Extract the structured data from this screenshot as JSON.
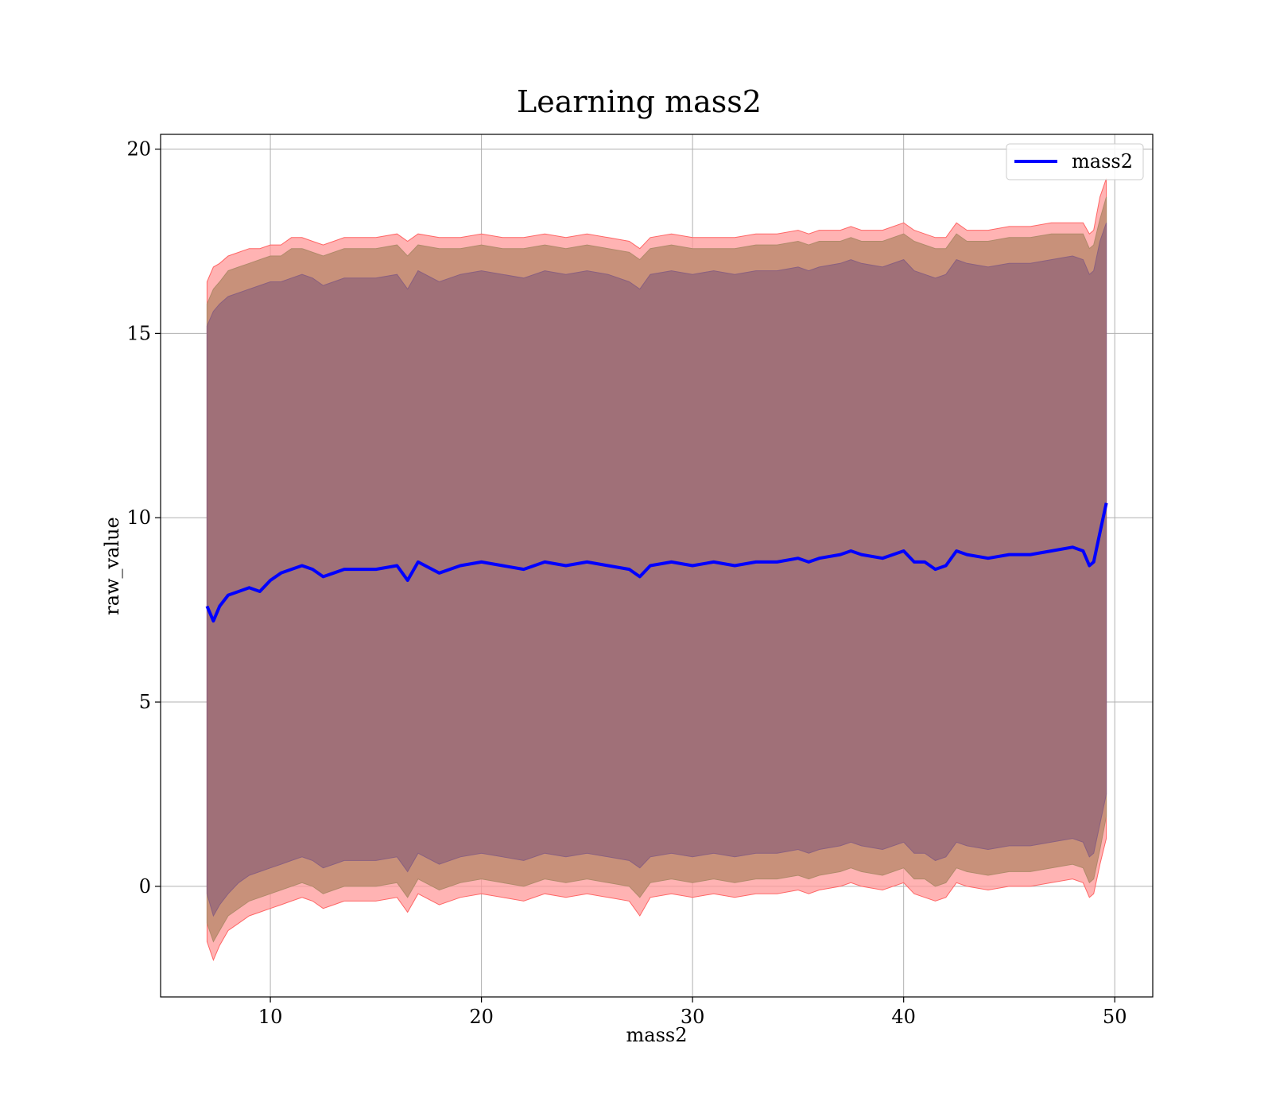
{
  "chart_data": {
    "type": "line",
    "title": "Learning mass2",
    "xlabel": "mass2",
    "ylabel": "raw_value",
    "xlim": [
      4.8,
      51.8
    ],
    "ylim": [
      -3.0,
      20.4
    ],
    "xticks": [
      10,
      20,
      30,
      40,
      50
    ],
    "yticks": [
      0,
      5,
      10,
      15,
      20
    ],
    "grid": true,
    "legend": {
      "position": "top-right",
      "entries": [
        "mass2"
      ]
    },
    "colors": {
      "line": "#0000ff",
      "outer_band": "#ff9999",
      "mid_band": "#c8917a",
      "inner_band": "#a07078"
    },
    "series": [
      {
        "name": "mass2",
        "x": [
          7.0,
          7.3,
          7.6,
          8.0,
          8.5,
          9.0,
          9.5,
          10.0,
          10.5,
          11.0,
          11.5,
          12.0,
          12.5,
          13.0,
          13.5,
          14.0,
          15.0,
          16.0,
          16.5,
          17.0,
          18.0,
          19.0,
          20.0,
          21.0,
          22.0,
          23.0,
          24.0,
          25.0,
          26.0,
          27.0,
          27.5,
          28.0,
          29.0,
          30.0,
          31.0,
          32.0,
          33.0,
          34.0,
          35.0,
          35.5,
          36.0,
          37.0,
          37.5,
          38.0,
          39.0,
          40.0,
          40.5,
          41.0,
          41.5,
          42.0,
          42.5,
          43.0,
          44.0,
          45.0,
          46.0,
          47.0,
          48.0,
          48.5,
          48.8,
          49.0,
          49.3,
          49.6
        ],
        "values": [
          7.6,
          7.2,
          7.6,
          7.9,
          8.0,
          8.1,
          8.0,
          8.3,
          8.5,
          8.6,
          8.7,
          8.6,
          8.4,
          8.5,
          8.6,
          8.6,
          8.6,
          8.7,
          8.3,
          8.8,
          8.5,
          8.7,
          8.8,
          8.7,
          8.6,
          8.8,
          8.7,
          8.8,
          8.7,
          8.6,
          8.4,
          8.7,
          8.8,
          8.7,
          8.8,
          8.7,
          8.8,
          8.8,
          8.9,
          8.8,
          8.9,
          9.0,
          9.1,
          9.0,
          8.9,
          9.1,
          8.8,
          8.8,
          8.6,
          8.7,
          9.1,
          9.0,
          8.9,
          9.0,
          9.0,
          9.1,
          9.2,
          9.1,
          8.7,
          8.8,
          9.6,
          10.4
        ],
        "bands": {
          "outer_upper": [
            16.4,
            16.8,
            16.9,
            17.1,
            17.2,
            17.3,
            17.3,
            17.4,
            17.4,
            17.6,
            17.6,
            17.5,
            17.4,
            17.5,
            17.6,
            17.6,
            17.6,
            17.7,
            17.5,
            17.7,
            17.6,
            17.6,
            17.7,
            17.6,
            17.6,
            17.7,
            17.6,
            17.7,
            17.6,
            17.5,
            17.3,
            17.6,
            17.7,
            17.6,
            17.6,
            17.6,
            17.7,
            17.7,
            17.8,
            17.7,
            17.8,
            17.8,
            17.9,
            17.8,
            17.8,
            18.0,
            17.8,
            17.7,
            17.6,
            17.6,
            18.0,
            17.8,
            17.8,
            17.9,
            17.9,
            18.0,
            18.0,
            18.0,
            17.7,
            17.8,
            18.7,
            19.2
          ],
          "mid_upper": [
            15.8,
            16.2,
            16.4,
            16.7,
            16.8,
            16.9,
            17.0,
            17.1,
            17.1,
            17.3,
            17.3,
            17.2,
            17.1,
            17.2,
            17.3,
            17.3,
            17.3,
            17.4,
            17.1,
            17.4,
            17.3,
            17.3,
            17.4,
            17.3,
            17.3,
            17.4,
            17.3,
            17.4,
            17.3,
            17.2,
            17.0,
            17.3,
            17.4,
            17.3,
            17.3,
            17.3,
            17.4,
            17.4,
            17.5,
            17.4,
            17.5,
            17.5,
            17.6,
            17.5,
            17.5,
            17.7,
            17.5,
            17.4,
            17.3,
            17.3,
            17.7,
            17.5,
            17.5,
            17.6,
            17.6,
            17.7,
            17.7,
            17.7,
            17.3,
            17.4,
            18.1,
            18.7
          ],
          "inner_upper": [
            15.2,
            15.6,
            15.8,
            16.0,
            16.1,
            16.2,
            16.3,
            16.4,
            16.4,
            16.5,
            16.6,
            16.5,
            16.3,
            16.4,
            16.5,
            16.5,
            16.5,
            16.6,
            16.2,
            16.7,
            16.4,
            16.6,
            16.7,
            16.6,
            16.5,
            16.7,
            16.6,
            16.7,
            16.6,
            16.4,
            16.2,
            16.6,
            16.7,
            16.6,
            16.7,
            16.6,
            16.7,
            16.7,
            16.8,
            16.7,
            16.8,
            16.9,
            17.0,
            16.9,
            16.8,
            17.0,
            16.7,
            16.6,
            16.5,
            16.6,
            17.0,
            16.9,
            16.8,
            16.9,
            16.9,
            17.0,
            17.1,
            17.0,
            16.6,
            16.7,
            17.5,
            18.0
          ],
          "inner_lower": [
            -0.2,
            -0.8,
            -0.5,
            -0.2,
            0.1,
            0.3,
            0.4,
            0.5,
            0.6,
            0.7,
            0.8,
            0.7,
            0.5,
            0.6,
            0.7,
            0.7,
            0.7,
            0.8,
            0.4,
            0.9,
            0.6,
            0.8,
            0.9,
            0.8,
            0.7,
            0.9,
            0.8,
            0.9,
            0.8,
            0.7,
            0.5,
            0.8,
            0.9,
            0.8,
            0.9,
            0.8,
            0.9,
            0.9,
            1.0,
            0.9,
            1.0,
            1.1,
            1.2,
            1.1,
            1.0,
            1.2,
            0.9,
            0.9,
            0.7,
            0.8,
            1.2,
            1.1,
            1.0,
            1.1,
            1.1,
            1.2,
            1.3,
            1.2,
            0.8,
            0.9,
            1.7,
            2.5
          ],
          "mid_lower": [
            -1.0,
            -1.5,
            -1.2,
            -0.8,
            -0.6,
            -0.4,
            -0.3,
            -0.2,
            -0.1,
            0.0,
            0.1,
            0.0,
            -0.2,
            -0.1,
            0.0,
            0.0,
            0.0,
            0.1,
            -0.3,
            0.2,
            -0.1,
            0.1,
            0.2,
            0.1,
            0.0,
            0.2,
            0.1,
            0.2,
            0.1,
            0.0,
            -0.3,
            0.1,
            0.2,
            0.1,
            0.2,
            0.1,
            0.2,
            0.2,
            0.3,
            0.2,
            0.3,
            0.4,
            0.5,
            0.4,
            0.3,
            0.5,
            0.2,
            0.2,
            0.0,
            0.1,
            0.5,
            0.4,
            0.3,
            0.4,
            0.4,
            0.5,
            0.6,
            0.5,
            0.1,
            0.2,
            1.0,
            1.9
          ],
          "outer_lower": [
            -1.5,
            -2.0,
            -1.6,
            -1.2,
            -1.0,
            -0.8,
            -0.7,
            -0.6,
            -0.5,
            -0.4,
            -0.3,
            -0.4,
            -0.6,
            -0.5,
            -0.4,
            -0.4,
            -0.4,
            -0.3,
            -0.7,
            -0.2,
            -0.5,
            -0.3,
            -0.2,
            -0.3,
            -0.4,
            -0.2,
            -0.3,
            -0.2,
            -0.3,
            -0.4,
            -0.8,
            -0.3,
            -0.2,
            -0.3,
            -0.2,
            -0.3,
            -0.2,
            -0.2,
            -0.1,
            -0.2,
            -0.1,
            0.0,
            0.1,
            0.0,
            -0.1,
            0.1,
            -0.2,
            -0.3,
            -0.4,
            -0.3,
            0.1,
            0.0,
            -0.1,
            0.0,
            0.0,
            0.1,
            0.2,
            0.1,
            -0.3,
            -0.2,
            0.6,
            1.3
          ]
        }
      }
    ]
  }
}
